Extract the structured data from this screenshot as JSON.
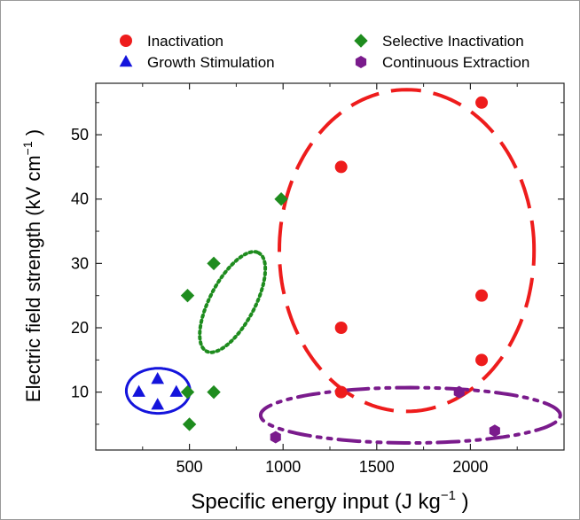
{
  "chart_data": {
    "type": "scatter",
    "title": "",
    "xlabel_main": "Specific energy input (J kg",
    "xlabel_sup": "−1",
    "xlabel_close": ")",
    "ylabel_main": "Electric field strength (kV cm",
    "ylabel_sup": "−1",
    "ylabel_close": ")",
    "xlim": [
      0,
      2500
    ],
    "ylim": [
      1,
      58
    ],
    "xticks": [
      500,
      1000,
      1500,
      2000
    ],
    "yticks": [
      10,
      20,
      30,
      40,
      50
    ],
    "xtick_labels": [
      "500",
      "1000",
      "1500",
      "2000"
    ],
    "ytick_labels": [
      "10",
      "20",
      "30",
      "40",
      "50"
    ],
    "grid": false,
    "legend_position": "top",
    "series": [
      {
        "name": "Inactivation",
        "marker": "circle",
        "color": "#ee1c1c",
        "points": [
          [
            1310,
            45
          ],
          [
            1310,
            20
          ],
          [
            1310,
            10
          ],
          [
            2060,
            55
          ],
          [
            2060,
            25
          ],
          [
            2060,
            15
          ]
        ]
      },
      {
        "name": "Growth Stimulation",
        "marker": "triangle",
        "color": "#1414dc",
        "points": [
          [
            230,
            10
          ],
          [
            330,
            12
          ],
          [
            330,
            8
          ],
          [
            430,
            10
          ]
        ]
      },
      {
        "name": "Selective Inactivation",
        "marker": "diamond",
        "color": "#1e8c1e",
        "points": [
          [
            490,
            25
          ],
          [
            490,
            10
          ],
          [
            500,
            5
          ],
          [
            630,
            30
          ],
          [
            630,
            10
          ],
          [
            990,
            40
          ]
        ]
      },
      {
        "name": "Continuous Extraction",
        "marker": "hexagon",
        "color": "#7a1b8c",
        "points": [
          [
            960,
            3
          ],
          [
            1940,
            10
          ],
          [
            2130,
            4
          ]
        ]
      }
    ],
    "ellipses": [
      {
        "group": "Inactivation",
        "style": "dash",
        "color": "#ee1c1c",
        "cx": 1660,
        "cy": 32,
        "rx": 680,
        "ry": 25,
        "angle": 0
      },
      {
        "group": "Selective Inactivation",
        "style": "dot",
        "color": "#1e8c1e",
        "cx": 730,
        "cy": 24,
        "rx": 480,
        "ry": 90,
        "angle": 62
      },
      {
        "group": "Growth Stimulation",
        "style": "solid",
        "color": "#1414dc",
        "cx": 333,
        "cy": 10.2,
        "rx": 170,
        "ry": 3.5,
        "angle": 0
      },
      {
        "group": "Continuous Extraction",
        "style": "dashdotdot",
        "color": "#7a1b8c",
        "cx": 1680,
        "cy": 6.4,
        "rx": 800,
        "ry": 4.3,
        "angle": 0
      }
    ]
  }
}
